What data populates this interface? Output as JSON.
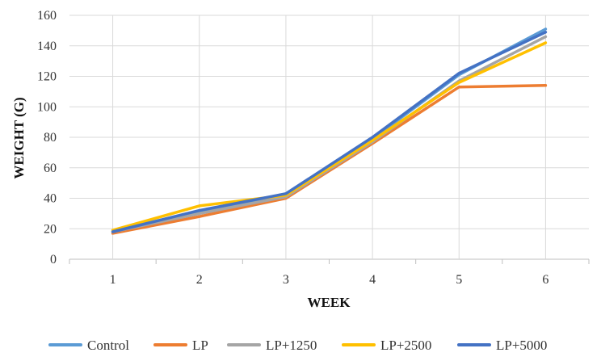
{
  "chart_data": {
    "type": "line",
    "title": "",
    "xlabel": "WEEK",
    "ylabel": "WEIGHT (G)",
    "categories": [
      "1",
      "2",
      "3",
      "4",
      "5",
      "6"
    ],
    "ylim": [
      0,
      160
    ],
    "yticks": [
      0,
      20,
      40,
      60,
      80,
      100,
      120,
      140,
      160
    ],
    "grid": true,
    "legend": "bottom",
    "series": [
      {
        "name": "Control",
        "color": "#5B9BD5",
        "values": [
          18,
          31,
          43,
          79,
          121,
          151
        ]
      },
      {
        "name": "LP",
        "color": "#ED7D31",
        "values": [
          17,
          28,
          40,
          76,
          113,
          114
        ]
      },
      {
        "name": "LP+1250",
        "color": "#A5A5A5",
        "values": [
          18,
          30,
          41,
          77,
          117,
          146
        ]
      },
      {
        "name": "LP+2500",
        "color": "#FFC000",
        "values": [
          19,
          35,
          42,
          78,
          116,
          142
        ]
      },
      {
        "name": "LP+5000",
        "color": "#4472C4",
        "values": [
          18,
          32,
          43,
          80,
          122,
          149
        ]
      }
    ]
  }
}
